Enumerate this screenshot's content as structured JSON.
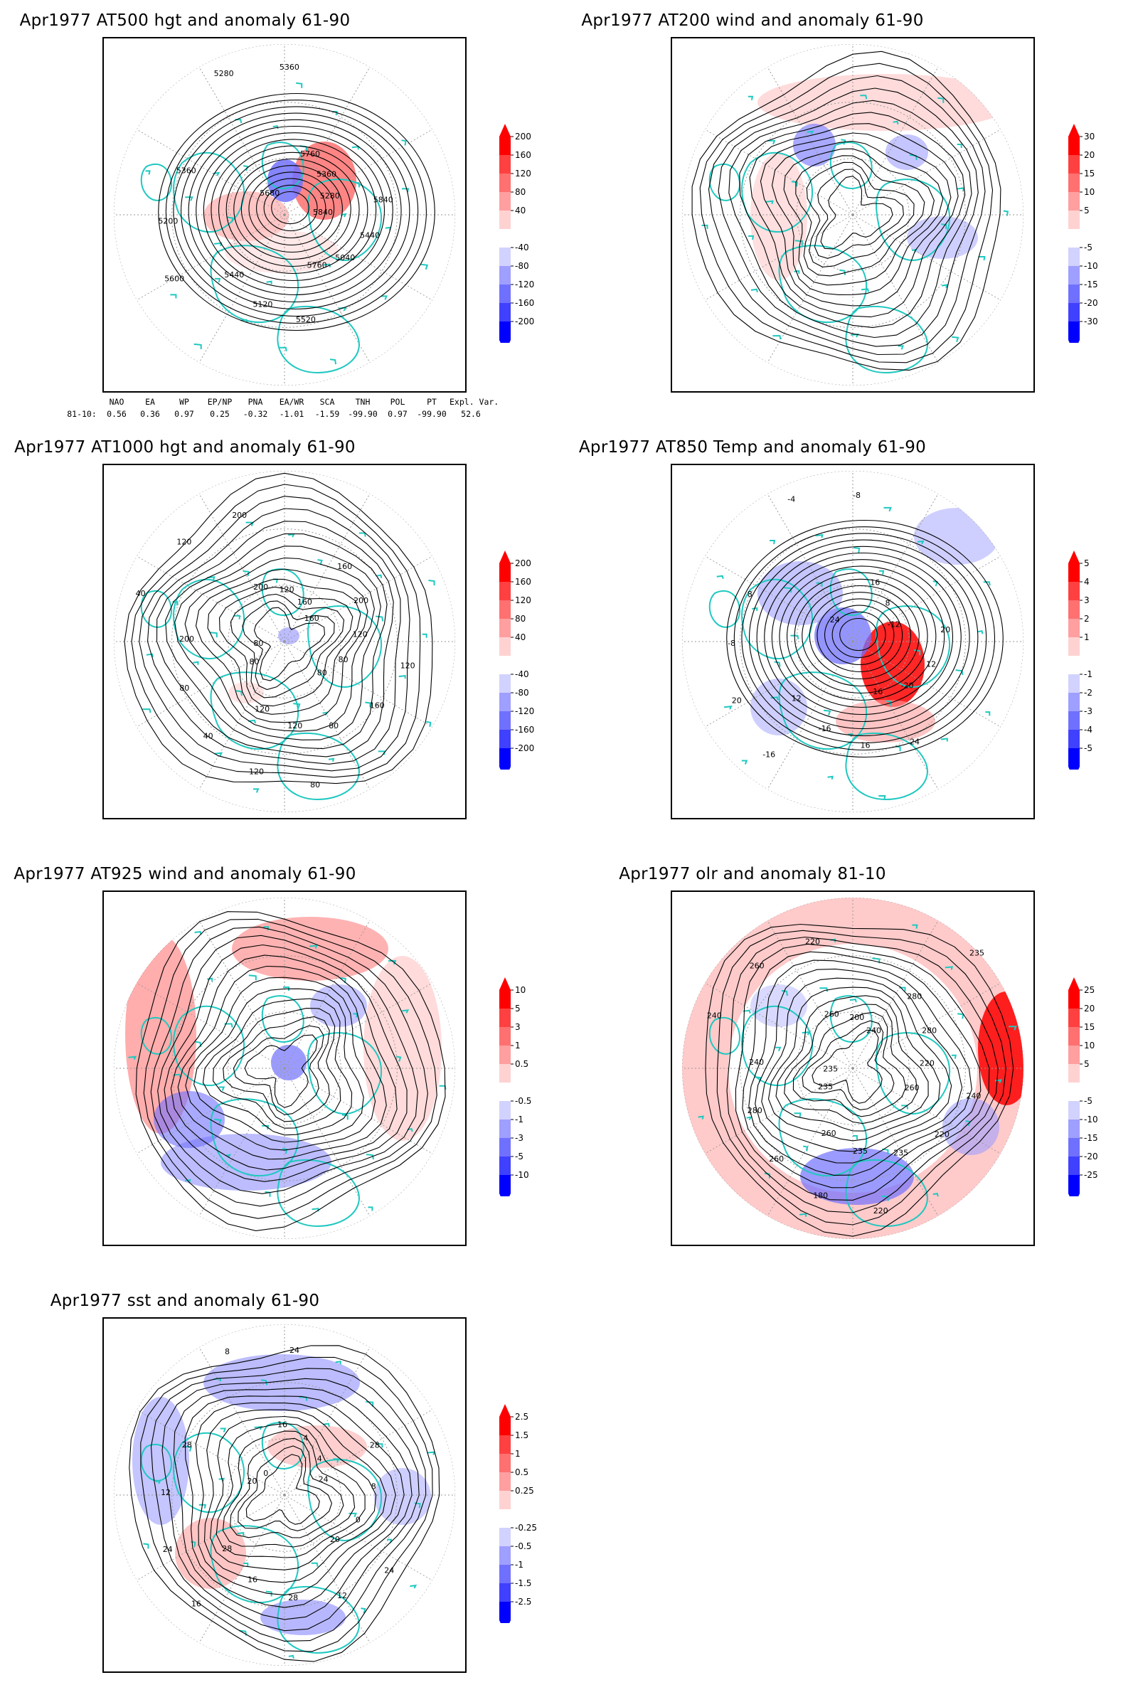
{
  "panels": [
    {
      "id": "p1",
      "title": "Apr1977 AT500 hgt and anomaly 61-90",
      "contour_labels": [
        "5840",
        "5760",
        "5440",
        "5360",
        "5360",
        "5280",
        "5040",
        "5120",
        "5200",
        "5280",
        "5360",
        "5440",
        "5520",
        "5600",
        "5680",
        "5760",
        "5840"
      ],
      "colorbar_ticks": [
        "200",
        "160",
        "120",
        "80",
        "40",
        "-40",
        "-80",
        "-120",
        "-160",
        "-200"
      ]
    },
    {
      "id": "p2",
      "title": "Apr1977 AT200 wind and anomaly 61-90",
      "contour_labels": [],
      "colorbar_ticks": [
        "30",
        "20",
        "15",
        "10",
        "5",
        "-5",
        "-10",
        "-15",
        "-20",
        "-30"
      ]
    },
    {
      "id": "p3",
      "title": "Apr1977 AT1000 hgt and anomaly 61-90",
      "contour_labels": [
        "80",
        "120",
        "200",
        "200",
        "160",
        "80",
        "120",
        "80",
        "120",
        "160",
        "120",
        "80",
        "40",
        "40",
        "120",
        "200",
        "160",
        "120",
        "80",
        "200",
        "160",
        "120",
        "80",
        "80"
      ],
      "colorbar_ticks": [
        "200",
        "160",
        "120",
        "80",
        "40",
        "-40",
        "-80",
        "-120",
        "-160",
        "-200"
      ]
    },
    {
      "id": "p4",
      "title": "Apr1977 AT850 Temp and anomaly 61-90",
      "contour_labels": [
        "16",
        "12",
        "8",
        "-8",
        "-12",
        "-20",
        "-16",
        "-8",
        "-4",
        "8",
        "12",
        "16",
        "20",
        "24",
        "16",
        "20",
        "24",
        "-16"
      ],
      "colorbar_ticks": [
        "5",
        "4",
        "3",
        "2",
        "1",
        "-1",
        "-2",
        "-3",
        "-4",
        "-5"
      ]
    },
    {
      "id": "p5",
      "title": "Apr1977 AT925 wind and anomaly 61-90",
      "contour_labels": [],
      "colorbar_ticks": [
        "10",
        "5",
        "3",
        "1",
        "0.5",
        "-0.5",
        "-1",
        "-3",
        "-5",
        "-10"
      ]
    },
    {
      "id": "p6",
      "title": "Apr1977 olr and anomaly 81-10",
      "contour_labels": [
        "260",
        "240",
        "220",
        "235",
        "260",
        "235",
        "280",
        "260",
        "240",
        "220",
        "235",
        "260",
        "240",
        "200",
        "280",
        "220",
        "180",
        "235",
        "260",
        "280",
        "240",
        "220",
        "235"
      ],
      "colorbar_ticks": [
        "25",
        "20",
        "15",
        "10",
        "5",
        "-5",
        "-10",
        "-15",
        "-20",
        "-25"
      ]
    },
    {
      "id": "p7",
      "title": "Apr1977 sst and anomaly 61-90",
      "contour_labels": [
        "28",
        "28",
        "24",
        "24",
        "20",
        "16",
        "12",
        "8",
        "4",
        "0",
        "28",
        "24",
        "0",
        "4",
        "8",
        "12",
        "16",
        "20",
        "16",
        "28",
        "24"
      ],
      "colorbar_ticks": [
        "2.5",
        "1.5",
        "1",
        "0.5",
        "0.25",
        "-0.25",
        "-0.5",
        "-1",
        "-1.5",
        "-2.5"
      ]
    }
  ],
  "colors": {
    "red_scale": [
      "#ff0000",
      "#ff4040",
      "#ff7070",
      "#ff9f9f",
      "#ffd2d2",
      "#ffffff"
    ],
    "blue_scale": [
      "#ffffff",
      "#d2d2ff",
      "#9f9fff",
      "#7070ff",
      "#4040ff",
      "#0000ff"
    ],
    "coastline": "#1fc8c0",
    "contour": "#000000"
  },
  "indices": {
    "headers": [
      "",
      "NAO",
      "EA",
      "WP",
      "EP/NP",
      "PNA",
      "EA/WR",
      "SCA",
      "TNH",
      "POL",
      "PT",
      "Expl. Var."
    ],
    "row_label": "81-10:",
    "values": [
      "0.56",
      "0.36",
      "0.97",
      "0.25",
      "-0.32",
      "-1.01",
      "-1.59",
      "-99.90",
      "0.97",
      "-99.90",
      "52.6"
    ]
  }
}
